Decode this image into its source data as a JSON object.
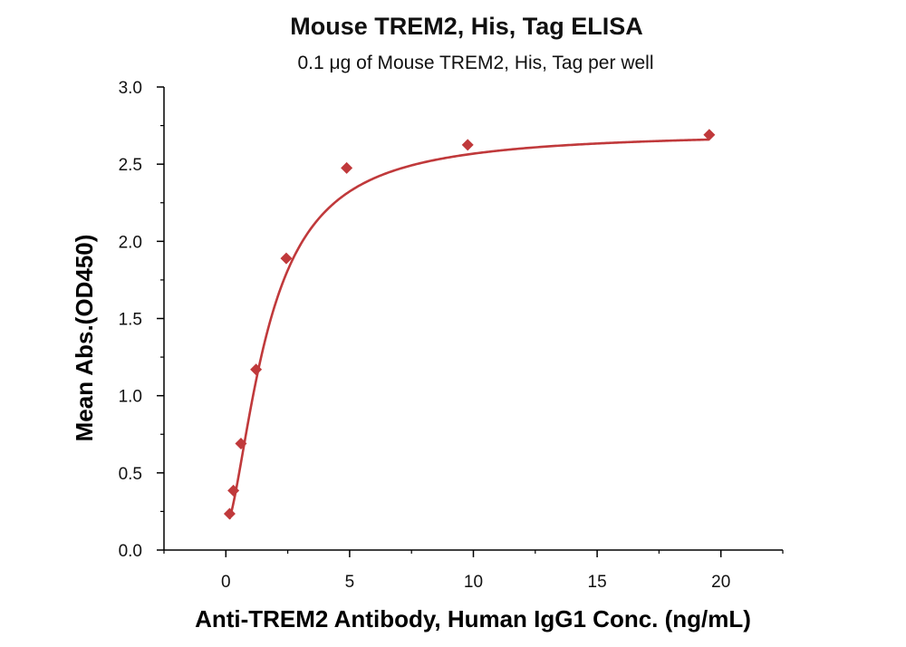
{
  "chart_data": {
    "type": "scatter",
    "title": "Mouse TREM2, His, Tag ELISA",
    "subtitle": "0.1 μg of Mouse TREM2, His, Tag per well",
    "xlabel": "Anti-TREM2 Antibody, Human IgG1 Conc. (ng/mL)",
    "ylabel": "Mean Abs.(OD450)",
    "xlim": [
      -2.5,
      22.5
    ],
    "ylim": [
      0.0,
      3.0
    ],
    "x_ticks": [
      "0",
      "5",
      "10",
      "15",
      "20"
    ],
    "x_tick_values": [
      0,
      5,
      10,
      15,
      20
    ],
    "y_ticks": [
      "0.0",
      "0.5",
      "1.0",
      "1.5",
      "2.0",
      "2.5",
      "3.0"
    ],
    "y_tick_values": [
      0.0,
      0.5,
      1.0,
      1.5,
      2.0,
      2.5,
      3.0
    ],
    "grid": false,
    "series": [
      {
        "marker": "diamond",
        "color": "#c0393b",
        "x": [
          0.152,
          0.305,
          0.61,
          1.22,
          2.44,
          4.88,
          9.77,
          19.53
        ],
        "y": [
          0.235,
          0.385,
          0.69,
          1.17,
          1.89,
          2.475,
          2.625,
          2.69
        ]
      }
    ],
    "fit_curve": {
      "color": "#c0393b",
      "type": "4PL",
      "bottom": 0.15,
      "top": 2.71,
      "ec50": 1.7,
      "hill": 1.6
    }
  }
}
